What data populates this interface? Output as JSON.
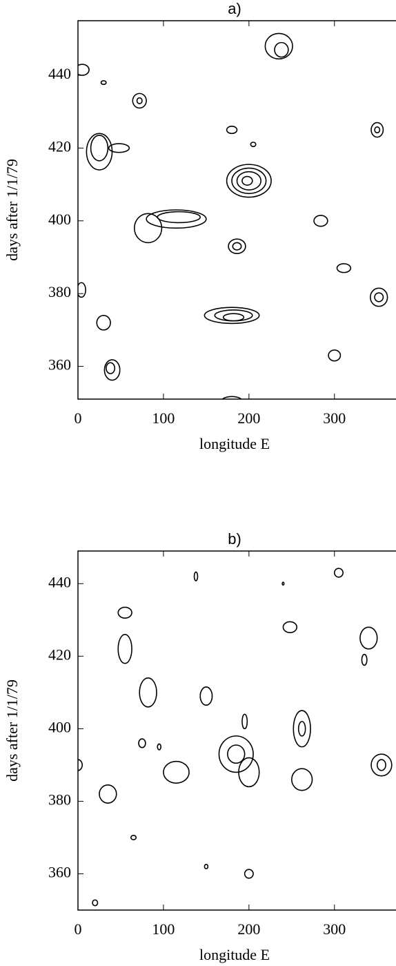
{
  "chart_data": [
    {
      "type": "contour",
      "title": "a)",
      "xlabel": "longitude E",
      "ylabel": "days after 1/1/79",
      "xlim": [
        0,
        372
      ],
      "ylim": [
        351,
        455
      ],
      "xticks": [
        0,
        100,
        200,
        300
      ],
      "yticks": [
        360,
        380,
        400,
        420,
        440
      ],
      "color": "#000000",
      "contours": [
        {
          "x": 5,
          "y": 441.5,
          "rx": 8,
          "ry": 1.5
        },
        {
          "x": 30,
          "y": 438,
          "rx": 3,
          "ry": 0.5
        },
        {
          "x": 72,
          "y": 433,
          "rx": 8,
          "ry": 2
        },
        {
          "x": 72,
          "y": 433,
          "rx": 3,
          "ry": 0.8
        },
        {
          "x": 25,
          "y": 419,
          "rx": 15,
          "ry": 5
        },
        {
          "x": 25,
          "y": 420,
          "rx": 10,
          "ry": 3.5
        },
        {
          "x": 48,
          "y": 420,
          "rx": 12,
          "ry": 1.2
        },
        {
          "x": 180,
          "y": 425,
          "rx": 6,
          "ry": 1
        },
        {
          "x": 205,
          "y": 421,
          "rx": 3,
          "ry": 0.6
        },
        {
          "x": 200,
          "y": 411,
          "rx": 26,
          "ry": 4.5
        },
        {
          "x": 200,
          "y": 411,
          "rx": 20,
          "ry": 3.5
        },
        {
          "x": 200,
          "y": 411,
          "rx": 14,
          "ry": 2.5
        },
        {
          "x": 198,
          "y": 411,
          "rx": 6,
          "ry": 1.2
        },
        {
          "x": 115,
          "y": 400.5,
          "rx": 35,
          "ry": 2.5
        },
        {
          "x": 118,
          "y": 401,
          "rx": 25,
          "ry": 1.5
        },
        {
          "x": 82,
          "y": 398,
          "rx": 16,
          "ry": 4
        },
        {
          "x": 186,
          "y": 393,
          "rx": 10,
          "ry": 2
        },
        {
          "x": 186,
          "y": 393,
          "rx": 5,
          "ry": 1
        },
        {
          "x": 284,
          "y": 400,
          "rx": 8,
          "ry": 1.5
        },
        {
          "x": 311,
          "y": 387,
          "rx": 8,
          "ry": 1.2
        },
        {
          "x": 352,
          "y": 379,
          "rx": 10,
          "ry": 2.5
        },
        {
          "x": 352,
          "y": 379,
          "rx": 5,
          "ry": 1.2
        },
        {
          "x": 180,
          "y": 374,
          "rx": 32,
          "ry": 2.2
        },
        {
          "x": 182,
          "y": 374,
          "rx": 22,
          "ry": 1.5
        },
        {
          "x": 182,
          "y": 373.5,
          "rx": 12,
          "ry": 1
        },
        {
          "x": 30,
          "y": 372,
          "rx": 8,
          "ry": 2
        },
        {
          "x": 4,
          "y": 381,
          "rx": 5,
          "ry": 2
        },
        {
          "x": 40,
          "y": 359,
          "rx": 9,
          "ry": 2.8
        },
        {
          "x": 38,
          "y": 359.5,
          "rx": 5,
          "ry": 1.5
        },
        {
          "x": 300,
          "y": 363,
          "rx": 7,
          "ry": 1.5
        },
        {
          "x": 180,
          "y": 350.5,
          "rx": 12,
          "ry": 1.2
        },
        {
          "x": 235,
          "y": 448,
          "rx": 16,
          "ry": 3.5
        },
        {
          "x": 238,
          "y": 447,
          "rx": 8,
          "ry": 2
        },
        {
          "x": 350,
          "y": 425,
          "rx": 7,
          "ry": 2
        },
        {
          "x": 350,
          "y": 425,
          "rx": 3,
          "ry": 0.8
        }
      ]
    },
    {
      "type": "contour",
      "title": "b)",
      "xlabel": "longitude E",
      "ylabel": "days after 1/1/79",
      "xlim": [
        0,
        372
      ],
      "ylim": [
        350,
        449
      ],
      "xticks": [
        0,
        100,
        200,
        300
      ],
      "yticks": [
        360,
        380,
        400,
        420,
        440
      ],
      "color": "#000000",
      "contours": [
        {
          "x": 138,
          "y": 442,
          "rx": 2,
          "ry": 1.2
        },
        {
          "x": 240,
          "y": 440,
          "rx": 1,
          "ry": 0.4
        },
        {
          "x": 305,
          "y": 443,
          "rx": 5,
          "ry": 1.2
        },
        {
          "x": 55,
          "y": 432,
          "rx": 8,
          "ry": 1.5
        },
        {
          "x": 248,
          "y": 428,
          "rx": 8,
          "ry": 1.5
        },
        {
          "x": 340,
          "y": 425,
          "rx": 10,
          "ry": 3
        },
        {
          "x": 55,
          "y": 422,
          "rx": 8,
          "ry": 4
        },
        {
          "x": 335,
          "y": 419,
          "rx": 3,
          "ry": 1.5
        },
        {
          "x": 82,
          "y": 410,
          "rx": 10,
          "ry": 4
        },
        {
          "x": 150,
          "y": 409,
          "rx": 7,
          "ry": 2.5
        },
        {
          "x": 195,
          "y": 402,
          "rx": 3,
          "ry": 2
        },
        {
          "x": 262,
          "y": 400,
          "rx": 10,
          "ry": 5
        },
        {
          "x": 262,
          "y": 400,
          "rx": 4,
          "ry": 2
        },
        {
          "x": 75,
          "y": 396,
          "rx": 4,
          "ry": 1.2
        },
        {
          "x": 95,
          "y": 395,
          "rx": 2,
          "ry": 0.8
        },
        {
          "x": 185,
          "y": 393,
          "rx": 20,
          "ry": 5
        },
        {
          "x": 185,
          "y": 393,
          "rx": 10,
          "ry": 2.5
        },
        {
          "x": 200,
          "y": 388,
          "rx": 12,
          "ry": 4
        },
        {
          "x": 115,
          "y": 388,
          "rx": 15,
          "ry": 3
        },
        {
          "x": 355,
          "y": 390,
          "rx": 12,
          "ry": 3
        },
        {
          "x": 355,
          "y": 390,
          "rx": 5,
          "ry": 1.5
        },
        {
          "x": 262,
          "y": 386,
          "rx": 12,
          "ry": 3
        },
        {
          "x": 35,
          "y": 382,
          "rx": 10,
          "ry": 2.5
        },
        {
          "x": 0,
          "y": 390,
          "rx": 5,
          "ry": 1.5
        },
        {
          "x": 65,
          "y": 370,
          "rx": 3,
          "ry": 0.6
        },
        {
          "x": 150,
          "y": 362,
          "rx": 2,
          "ry": 0.6
        },
        {
          "x": 200,
          "y": 360,
          "rx": 5,
          "ry": 1.2
        },
        {
          "x": 20,
          "y": 352,
          "rx": 3,
          "ry": 0.8
        }
      ]
    }
  ]
}
